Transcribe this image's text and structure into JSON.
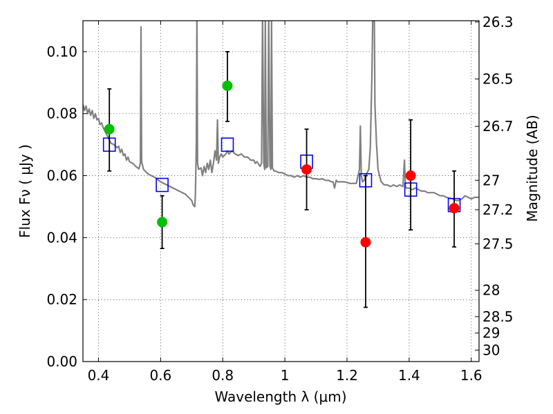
{
  "chart_data": {
    "type": "scatter",
    "xlabel": "Wavelength  λ (μm)",
    "ylabel": "Flux  Fν  ( μJy )",
    "ylabel_right": "Magnitude (AB)",
    "xlim": [
      0.35,
      1.625
    ],
    "ylim": [
      0.0,
      0.11
    ],
    "grid": true,
    "x_ticks": [
      {
        "value": 0.4,
        "label": "0.4"
      },
      {
        "value": 0.6,
        "label": "0.6"
      },
      {
        "value": 0.8,
        "label": "0.8"
      },
      {
        "value": 1.0,
        "label": "1"
      },
      {
        "value": 1.2,
        "label": "1.2"
      },
      {
        "value": 1.4,
        "label": "1.4"
      },
      {
        "value": 1.6,
        "label": "1.6"
      }
    ],
    "y_ticks": [
      {
        "value": 0.0,
        "label": "0.00"
      },
      {
        "value": 0.02,
        "label": "0.02"
      },
      {
        "value": 0.04,
        "label": "0.04"
      },
      {
        "value": 0.06,
        "label": "0.06"
      },
      {
        "value": 0.08,
        "label": "0.08"
      },
      {
        "value": 0.1,
        "label": "0.10"
      }
    ],
    "right_ticks": [
      {
        "flux": 0.1096,
        "label": "26.3"
      },
      {
        "flux": 0.0912,
        "label": "26.5"
      },
      {
        "flux": 0.0759,
        "label": "26.7"
      },
      {
        "flux": 0.0585,
        "label": "27"
      },
      {
        "flux": 0.049,
        "label": "27.2"
      },
      {
        "flux": 0.038,
        "label": "27.5"
      },
      {
        "flux": 0.023,
        "label": "28"
      },
      {
        "flux": 0.0145,
        "label": "28.5"
      },
      {
        "flux": 0.0092,
        "label": "29"
      },
      {
        "flux": 0.0037,
        "label": "30"
      }
    ],
    "series": [
      {
        "kind": "line",
        "color": "#808080",
        "points": [
          [
            0.35,
            0.083
          ],
          [
            0.355,
            0.081
          ],
          [
            0.36,
            0.0825
          ],
          [
            0.365,
            0.08
          ],
          [
            0.37,
            0.0815
          ],
          [
            0.375,
            0.0795
          ],
          [
            0.38,
            0.081
          ],
          [
            0.385,
            0.0785
          ],
          [
            0.39,
            0.08
          ],
          [
            0.395,
            0.078
          ],
          [
            0.4,
            0.0785
          ],
          [
            0.405,
            0.0765
          ],
          [
            0.41,
            0.077
          ],
          [
            0.415,
            0.0755
          ],
          [
            0.42,
            0.0745
          ],
          [
            0.425,
            0.0735
          ],
          [
            0.43,
            0.0725
          ],
          [
            0.435,
            0.0715
          ],
          [
            0.44,
            0.0705
          ],
          [
            0.45,
            0.07
          ],
          [
            0.46,
            0.069
          ],
          [
            0.465,
            0.0695
          ],
          [
            0.47,
            0.0675
          ],
          [
            0.475,
            0.0685
          ],
          [
            0.48,
            0.0665
          ],
          [
            0.485,
            0.067
          ],
          [
            0.49,
            0.065
          ],
          [
            0.495,
            0.066
          ],
          [
            0.5,
            0.0645
          ],
          [
            0.51,
            0.064
          ],
          [
            0.52,
            0.063
          ],
          [
            0.53,
            0.0622
          ],
          [
            0.535,
            0.064
          ],
          [
            0.537,
            0.108
          ],
          [
            0.539,
            0.0645
          ],
          [
            0.545,
            0.062
          ],
          [
            0.56,
            0.0605
          ],
          [
            0.58,
            0.0595
          ],
          [
            0.6,
            0.058
          ],
          [
            0.62,
            0.057
          ],
          [
            0.64,
            0.056
          ],
          [
            0.66,
            0.055
          ],
          [
            0.68,
            0.054
          ],
          [
            0.69,
            0.053
          ],
          [
            0.7,
            0.052
          ],
          [
            0.705,
            0.0505
          ],
          [
            0.71,
            0.05
          ],
          [
            0.712,
            0.054
          ],
          [
            0.715,
            0.07
          ],
          [
            0.717,
            0.112
          ],
          [
            0.719,
            0.064
          ],
          [
            0.722,
            0.062
          ],
          [
            0.73,
            0.0625
          ],
          [
            0.735,
            0.06
          ],
          [
            0.74,
            0.063
          ],
          [
            0.745,
            0.061
          ],
          [
            0.75,
            0.064
          ],
          [
            0.755,
            0.062
          ],
          [
            0.76,
            0.065
          ],
          [
            0.765,
            0.061
          ],
          [
            0.77,
            0.064
          ],
          [
            0.775,
            0.068
          ],
          [
            0.78,
            0.065
          ],
          [
            0.783,
            0.078
          ],
          [
            0.786,
            0.064
          ],
          [
            0.79,
            0.066
          ],
          [
            0.795,
            0.067
          ],
          [
            0.8,
            0.066
          ],
          [
            0.81,
            0.067
          ],
          [
            0.815,
            0.068
          ],
          [
            0.82,
            0.067
          ],
          [
            0.83,
            0.068
          ],
          [
            0.84,
            0.067
          ],
          [
            0.85,
            0.0665
          ],
          [
            0.86,
            0.067
          ],
          [
            0.87,
            0.066
          ],
          [
            0.88,
            0.066
          ],
          [
            0.89,
            0.065
          ],
          [
            0.9,
            0.065
          ],
          [
            0.905,
            0.064
          ],
          [
            0.91,
            0.0645
          ],
          [
            0.92,
            0.063
          ],
          [
            0.925,
            0.064
          ],
          [
            0.928,
            0.112
          ],
          [
            0.932,
            0.064
          ],
          [
            0.935,
            0.062
          ],
          [
            0.937,
            0.112
          ],
          [
            0.94,
            0.0625
          ],
          [
            0.945,
            0.063
          ],
          [
            0.948,
            0.112
          ],
          [
            0.952,
            0.063
          ],
          [
            0.955,
            0.062
          ],
          [
            0.957,
            0.112
          ],
          [
            0.96,
            0.0625
          ],
          [
            0.965,
            0.0615
          ],
          [
            0.97,
            0.0615
          ],
          [
            0.98,
            0.061
          ],
          [
            0.99,
            0.061
          ],
          [
            1.0,
            0.0605
          ],
          [
            1.01,
            0.06
          ],
          [
            1.02,
            0.06
          ],
          [
            1.03,
            0.0595
          ],
          [
            1.04,
            0.06
          ],
          [
            1.05,
            0.0595
          ],
          [
            1.06,
            0.06
          ],
          [
            1.07,
            0.0595
          ],
          [
            1.08,
            0.0595
          ],
          [
            1.09,
            0.059
          ],
          [
            1.1,
            0.059
          ],
          [
            1.11,
            0.0588
          ],
          [
            1.12,
            0.059
          ],
          [
            1.13,
            0.0585
          ],
          [
            1.14,
            0.0585
          ],
          [
            1.15,
            0.058
          ],
          [
            1.155,
            0.058
          ],
          [
            1.16,
            0.056
          ],
          [
            1.165,
            0.0585
          ],
          [
            1.17,
            0.058
          ],
          [
            1.18,
            0.058
          ],
          [
            1.19,
            0.058
          ],
          [
            1.2,
            0.0578
          ],
          [
            1.21,
            0.0575
          ],
          [
            1.22,
            0.0575
          ],
          [
            1.23,
            0.0575
          ],
          [
            1.24,
            0.062
          ],
          [
            1.243,
            0.076
          ],
          [
            1.246,
            0.06
          ],
          [
            1.25,
            0.058
          ],
          [
            1.255,
            0.0585
          ],
          [
            1.26,
            0.06
          ],
          [
            1.27,
            0.062
          ],
          [
            1.275,
            0.069
          ],
          [
            1.28,
            0.092
          ],
          [
            1.283,
            0.112
          ],
          [
            1.288,
            0.112
          ],
          [
            1.29,
            0.083
          ],
          [
            1.295,
            0.07
          ],
          [
            1.3,
            0.062
          ],
          [
            1.31,
            0.058
          ],
          [
            1.32,
            0.057
          ],
          [
            1.33,
            0.057
          ],
          [
            1.34,
            0.0565
          ],
          [
            1.35,
            0.057
          ],
          [
            1.36,
            0.0565
          ],
          [
            1.37,
            0.057
          ],
          [
            1.38,
            0.0565
          ],
          [
            1.385,
            0.065
          ],
          [
            1.388,
            0.0565
          ],
          [
            1.39,
            0.056
          ],
          [
            1.4,
            0.056
          ],
          [
            1.41,
            0.0555
          ],
          [
            1.42,
            0.056
          ],
          [
            1.43,
            0.0555
          ],
          [
            1.44,
            0.055
          ],
          [
            1.45,
            0.055
          ],
          [
            1.46,
            0.0545
          ],
          [
            1.47,
            0.0545
          ],
          [
            1.48,
            0.0545
          ],
          [
            1.49,
            0.054
          ],
          [
            1.5,
            0.0535
          ],
          [
            1.51,
            0.0535
          ],
          [
            1.52,
            0.053
          ],
          [
            1.53,
            0.0528
          ],
          [
            1.54,
            0.0525
          ],
          [
            1.55,
            0.052
          ],
          [
            1.56,
            0.052
          ],
          [
            1.57,
            0.0525
          ],
          [
            1.58,
            0.0535
          ],
          [
            1.59,
            0.053
          ],
          [
            1.6,
            0.0525
          ],
          [
            1.61,
            0.053
          ],
          [
            1.625,
            0.053
          ]
        ]
      },
      {
        "kind": "open-square",
        "color": "#0000ff",
        "points": [
          [
            0.435,
            0.07
          ],
          [
            0.605,
            0.057
          ],
          [
            0.815,
            0.07
          ],
          [
            1.07,
            0.0645
          ],
          [
            1.26,
            0.0585
          ],
          [
            1.405,
            0.0555
          ],
          [
            1.545,
            0.0505
          ]
        ]
      },
      {
        "kind": "filled-circle",
        "color": "#00c000",
        "points": [
          {
            "x": 0.435,
            "y": 0.075,
            "lo": 0.0615,
            "hi": 0.088
          },
          {
            "x": 0.605,
            "y": 0.045,
            "lo": 0.0365,
            "hi": 0.0535
          },
          {
            "x": 0.815,
            "y": 0.089,
            "lo": 0.0775,
            "hi": 0.1
          }
        ]
      },
      {
        "kind": "filled-circle",
        "color": "#ff0000",
        "points": [
          {
            "x": 1.07,
            "y": 0.062,
            "lo": 0.049,
            "hi": 0.075
          },
          {
            "x": 1.26,
            "y": 0.0385,
            "lo": 0.0175,
            "hi": 0.06
          },
          {
            "x": 1.405,
            "y": 0.06,
            "lo": 0.0425,
            "hi": 0.078
          },
          {
            "x": 1.545,
            "y": 0.0495,
            "lo": 0.037,
            "hi": 0.0615
          }
        ]
      }
    ]
  }
}
